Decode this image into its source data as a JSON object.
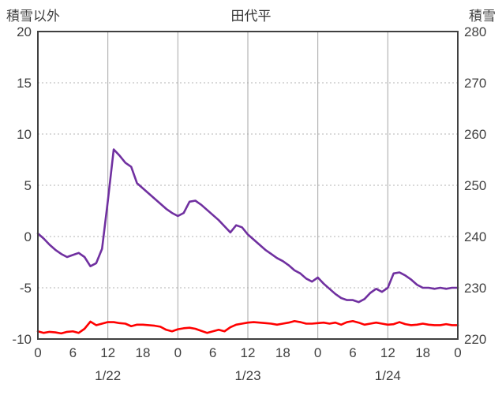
{
  "chart_data": {
    "type": "line",
    "title": "田代平",
    "left_axis": {
      "label": "積雪以外",
      "min": -10,
      "max": 20,
      "ticks": [
        20,
        15,
        10,
        5,
        0,
        -5,
        -10
      ]
    },
    "right_axis": {
      "label": "積雪",
      "min": 220,
      "max": 280,
      "ticks": [
        280,
        270,
        260,
        250,
        240,
        230,
        220
      ]
    },
    "x_axis": {
      "hours_total": 72,
      "tick_interval": 6,
      "tick_labels": [
        "0",
        "6",
        "12",
        "18",
        "0",
        "6",
        "12",
        "18",
        "0",
        "6",
        "12",
        "18",
        "0"
      ],
      "day_labels": [
        "1/22",
        "1/23",
        "1/24"
      ],
      "day_label_hours": [
        12,
        36,
        60
      ]
    },
    "grid": {
      "h_lines": [
        15,
        10,
        5,
        0,
        -5
      ],
      "v_lines_hours": [
        12,
        24,
        36,
        48,
        60
      ],
      "h_line_color": "#b3b3b3",
      "v_line_color": "#a6a6a6",
      "frame_color": "#404040"
    },
    "series": [
      {
        "name": "積雪以外",
        "axis": "left",
        "color": "#7030a0",
        "values": [
          0.3,
          -0.2,
          -0.8,
          -1.3,
          -1.7,
          -2.0,
          -1.8,
          -1.6,
          -2.0,
          -2.9,
          -2.6,
          -1.2,
          3.5,
          8.5,
          7.9,
          7.2,
          6.8,
          5.2,
          4.7,
          4.2,
          3.7,
          3.2,
          2.7,
          2.3,
          2.0,
          2.3,
          3.4,
          3.5,
          3.1,
          2.6,
          2.1,
          1.6,
          1.0,
          0.4,
          1.1,
          0.9,
          0.2,
          -0.3,
          -0.8,
          -1.3,
          -1.7,
          -2.1,
          -2.4,
          -2.8,
          -3.3,
          -3.6,
          -4.1,
          -4.4,
          -4.0,
          -4.6,
          -5.1,
          -5.6,
          -6.0,
          -6.2,
          -6.2,
          -6.4,
          -6.1,
          -5.5,
          -5.1,
          -5.4,
          -5.0,
          -3.6,
          -3.5,
          -3.8,
          -4.2,
          -4.7,
          -5.0,
          -5.0,
          -5.1,
          -5.0,
          -5.1,
          -5.0,
          -5.0
        ]
      },
      {
        "name": "積雪",
        "axis": "right",
        "color": "#ff0000",
        "values": [
          221.5,
          221.2,
          221.4,
          221.3,
          221.1,
          221.4,
          221.5,
          221.2,
          222.0,
          223.4,
          222.7,
          223.0,
          223.3,
          223.3,
          223.1,
          223.0,
          222.5,
          222.8,
          222.8,
          222.7,
          222.6,
          222.4,
          221.8,
          221.5,
          221.9,
          222.1,
          222.2,
          222.0,
          221.6,
          221.2,
          221.5,
          221.8,
          221.5,
          222.3,
          222.8,
          223.0,
          223.2,
          223.3,
          223.2,
          223.1,
          223.0,
          222.8,
          223.0,
          223.2,
          223.5,
          223.3,
          223.0,
          223.0,
          223.1,
          223.2,
          223.0,
          223.2,
          222.8,
          223.3,
          223.5,
          223.2,
          222.8,
          223.0,
          223.2,
          223.0,
          222.8,
          222.9,
          223.3,
          222.9,
          222.7,
          222.8,
          223.0,
          222.8,
          222.7,
          222.7,
          222.9,
          222.7,
          222.7
        ]
      }
    ]
  }
}
